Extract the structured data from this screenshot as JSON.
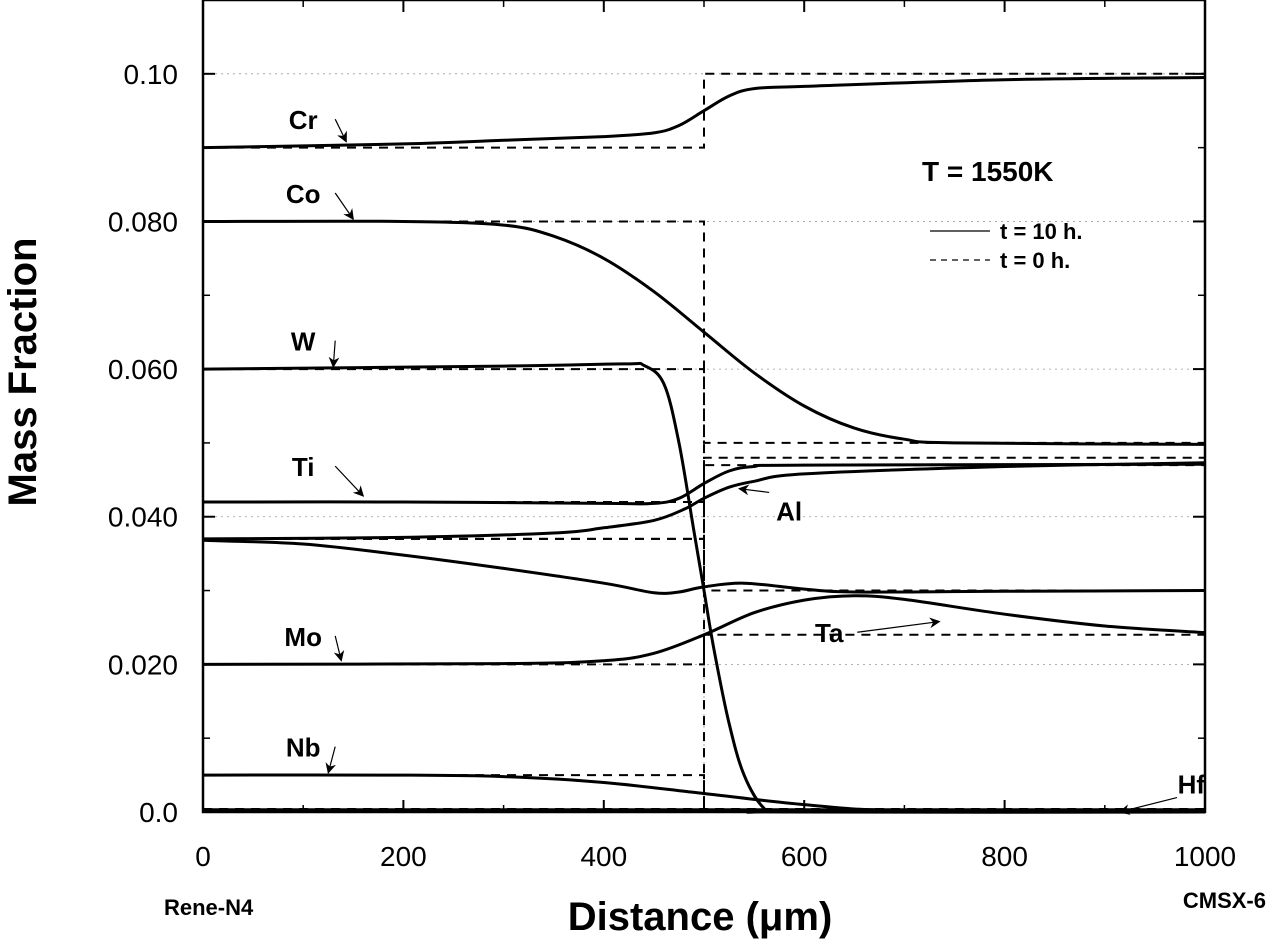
{
  "chart_data": {
    "type": "line",
    "xlabel": "Distance (μm)",
    "ylabel": "Mass Fraction",
    "xlim": [
      0,
      1000
    ],
    "ylim": [
      0,
      0.11
    ],
    "x_ticks": [
      {
        "value": 0,
        "label": "0"
      },
      {
        "value": 200,
        "label": "200"
      },
      {
        "value": 400,
        "label": "400"
      },
      {
        "value": 600,
        "label": "600"
      },
      {
        "value": 800,
        "label": "800"
      },
      {
        "value": 1000,
        "label": "1000"
      }
    ],
    "y_ticks": [
      {
        "value": 0,
        "label": "0.0"
      },
      {
        "value": 0.02,
        "label": "0.020"
      },
      {
        "value": 0.04,
        "label": "0.040"
      },
      {
        "value": 0.06,
        "label": "0.060"
      },
      {
        "value": 0.08,
        "label": "0.080"
      },
      {
        "value": 0.1,
        "label": "0.10"
      }
    ],
    "left_material": "Rene-N4",
    "right_material": "CMSX-6",
    "annotation": "T = 1550K",
    "legend": {
      "placement": "right",
      "entries": [
        {
          "label": "t = 10 h.",
          "style": "solid"
        },
        {
          "label": "t = 0 h.",
          "style": "dashed"
        }
      ]
    },
    "series": [
      {
        "name": "Cr",
        "label_pos": [
          100,
          0.0925
        ],
        "arrow_to": [
          143,
          0.0908
        ],
        "initial": [
          [
            0,
            0.09
          ],
          [
            500,
            0.09
          ],
          [
            500,
            0.1
          ],
          [
            1000,
            0.1
          ]
        ],
        "profile": [
          [
            0,
            0.09
          ],
          [
            200,
            0.0905
          ],
          [
            300,
            0.091
          ],
          [
            400,
            0.0915
          ],
          [
            450,
            0.092
          ],
          [
            475,
            0.093
          ],
          [
            500,
            0.095
          ],
          [
            525,
            0.097
          ],
          [
            550,
            0.098
          ],
          [
            600,
            0.0983
          ],
          [
            800,
            0.0992
          ],
          [
            1000,
            0.0995
          ]
        ]
      },
      {
        "name": "Co",
        "label_pos": [
          100,
          0.0825
        ],
        "arrow_to": [
          150,
          0.0803
        ],
        "initial": [
          [
            0,
            0.08
          ],
          [
            500,
            0.08
          ],
          [
            500,
            0.05
          ],
          [
            1000,
            0.05
          ]
        ],
        "profile": [
          [
            0,
            0.08
          ],
          [
            200,
            0.08
          ],
          [
            300,
            0.0795
          ],
          [
            350,
            0.078
          ],
          [
            400,
            0.075
          ],
          [
            450,
            0.0705
          ],
          [
            500,
            0.065
          ],
          [
            550,
            0.0595
          ],
          [
            600,
            0.055
          ],
          [
            650,
            0.052
          ],
          [
            700,
            0.0505
          ],
          [
            750,
            0.05
          ],
          [
            1000,
            0.0498
          ]
        ]
      },
      {
        "name": "W",
        "label_pos": [
          100,
          0.0625
        ],
        "arrow_to": [
          130,
          0.0603
        ],
        "initial": [
          [
            0,
            0.06
          ],
          [
            500,
            0.06
          ],
          [
            500,
            0
          ],
          [
            1000,
            0
          ]
        ],
        "profile": [
          [
            0,
            0.06
          ],
          [
            300,
            0.0604
          ],
          [
            420,
            0.0607
          ],
          [
            440,
            0.0605
          ],
          [
            460,
            0.058
          ],
          [
            475,
            0.05
          ],
          [
            490,
            0.038
          ],
          [
            500,
            0.03
          ],
          [
            510,
            0.022
          ],
          [
            525,
            0.012
          ],
          [
            540,
            0.005
          ],
          [
            560,
            0.0005
          ],
          [
            580,
            0
          ],
          [
            1000,
            0
          ]
        ]
      },
      {
        "name": "Ti",
        "label_pos": [
          100,
          0.0455
        ],
        "arrow_to": [
          160,
          0.0428
        ],
        "initial": [
          [
            0,
            0.042
          ],
          [
            500,
            0.042
          ],
          [
            500,
            0.048
          ],
          [
            1000,
            0.048
          ]
        ],
        "profile": [
          [
            0,
            0.042
          ],
          [
            200,
            0.042
          ],
          [
            400,
            0.0418
          ],
          [
            450,
            0.0418
          ],
          [
            475,
            0.0425
          ],
          [
            500,
            0.0445
          ],
          [
            525,
            0.0462
          ],
          [
            550,
            0.0468
          ],
          [
            600,
            0.047
          ],
          [
            1000,
            0.0471
          ]
        ]
      },
      {
        "name": "Al",
        "label_pos": [
          585,
          0.0395
        ],
        "arrow_to": [
          535,
          0.0438
        ],
        "initial": [
          [
            0,
            0.037
          ],
          [
            500,
            0.037
          ],
          [
            500,
            0.047
          ],
          [
            1000,
            0.047
          ]
        ],
        "profile": [
          [
            0,
            0.037
          ],
          [
            200,
            0.0372
          ],
          [
            350,
            0.0378
          ],
          [
            400,
            0.0385
          ],
          [
            450,
            0.0395
          ],
          [
            480,
            0.041
          ],
          [
            500,
            0.0425
          ],
          [
            525,
            0.044
          ],
          [
            550,
            0.0448
          ],
          [
            600,
            0.0458
          ],
          [
            800,
            0.0468
          ],
          [
            1000,
            0.0473
          ]
        ]
      },
      {
        "name": "Ta",
        "label_pos": [
          625,
          0.023
        ],
        "arrow_to": [
          735,
          0.0258
        ],
        "initial": [
          [
            0,
            0.037
          ],
          [
            500,
            0.037
          ],
          [
            500,
            0.03
          ],
          [
            1000,
            0.03
          ]
        ],
        "profile": [
          [
            0,
            0.0368
          ],
          [
            100,
            0.0363
          ],
          [
            200,
            0.0348
          ],
          [
            300,
            0.033
          ],
          [
            400,
            0.031
          ],
          [
            450,
            0.0297
          ],
          [
            475,
            0.0298
          ],
          [
            500,
            0.0305
          ],
          [
            540,
            0.031
          ],
          [
            600,
            0.0302
          ],
          [
            650,
            0.0298
          ],
          [
            800,
            0.0299
          ],
          [
            1000,
            0.03
          ]
        ]
      },
      {
        "name": "Mo",
        "label_pos": [
          100,
          0.0225
        ],
        "arrow_to": [
          138,
          0.0205
        ],
        "initial": [
          [
            0,
            0.02
          ],
          [
            500,
            0.02
          ],
          [
            500,
            0.024
          ],
          [
            1000,
            0.024
          ]
        ],
        "profile": [
          [
            0,
            0.02
          ],
          [
            300,
            0.0201
          ],
          [
            400,
            0.0205
          ],
          [
            450,
            0.0215
          ],
          [
            500,
            0.024
          ],
          [
            550,
            0.027
          ],
          [
            600,
            0.0287
          ],
          [
            650,
            0.0293
          ],
          [
            700,
            0.0288
          ],
          [
            800,
            0.0268
          ],
          [
            900,
            0.0252
          ],
          [
            1000,
            0.0243
          ]
        ]
      },
      {
        "name": "Nb",
        "label_pos": [
          100,
          0.0075
        ],
        "arrow_to": [
          125,
          0.0053
        ],
        "initial": [
          [
            0,
            0.005
          ],
          [
            500,
            0.005
          ],
          [
            500,
            0
          ],
          [
            1000,
            0
          ]
        ],
        "profile": [
          [
            0,
            0.005
          ],
          [
            200,
            0.005
          ],
          [
            300,
            0.0048
          ],
          [
            400,
            0.004
          ],
          [
            500,
            0.0025
          ],
          [
            600,
            0.001
          ],
          [
            700,
            0.0002
          ],
          [
            1000,
            0
          ]
        ]
      },
      {
        "name": "Hf",
        "label_pos": [
          1000,
          0.0025
        ],
        "arrow_to": [
          915,
          0
        ],
        "initial": [
          [
            0,
            0.0004
          ],
          [
            500,
            0.0004
          ],
          [
            500,
            0.0004
          ],
          [
            1000,
            0.0004
          ]
        ],
        "profile": [
          [
            0,
            0.0003
          ],
          [
            1000,
            0.0003
          ]
        ]
      }
    ]
  }
}
